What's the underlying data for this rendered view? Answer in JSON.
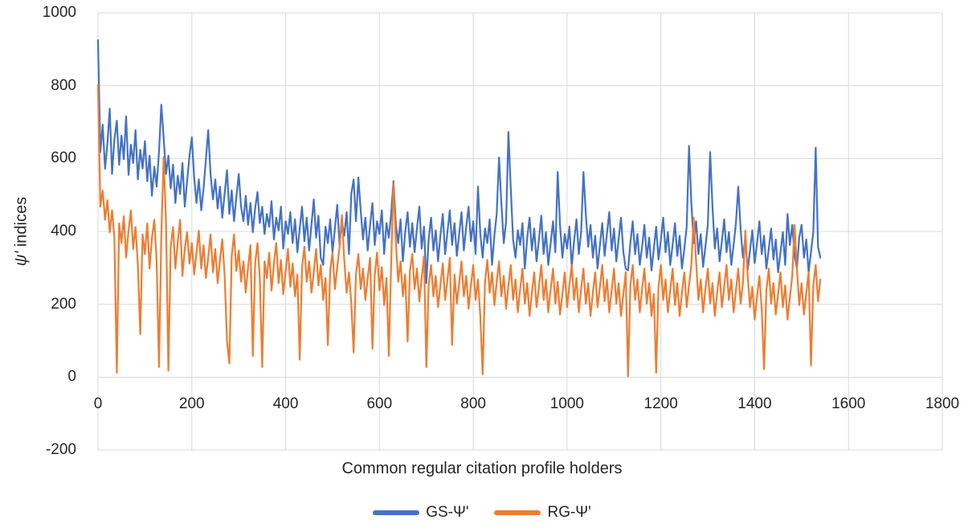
{
  "chart_data": {
    "type": "line",
    "title": "",
    "xlabel": "Common regular citation profile holders",
    "ylabel": "ψ' indices",
    "ylabel_symbol": "ψ'",
    "ylabel_rest": " indices",
    "xlim": [
      0,
      1800
    ],
    "ylim": [
      -200,
      1000
    ],
    "x_ticks": [
      0,
      200,
      400,
      600,
      800,
      1000,
      1200,
      1400,
      1600,
      1800
    ],
    "y_ticks": [
      -200,
      0,
      200,
      400,
      600,
      800,
      1000
    ],
    "grid": true,
    "gridline_color": "#d9d9d9",
    "legend_position": "bottom",
    "x_start": 0,
    "x_step": 5,
    "series": [
      {
        "name": "GS-Ψ'",
        "color": "#4472C4",
        "values": [
          925,
          618,
          693,
          572,
          641,
          737,
          558,
          652,
          704,
          583,
          663,
          598,
          716,
          555,
          638,
          588,
          678,
          543,
          624,
          573,
          648,
          538,
          608,
          498,
          578,
          523,
          618,
          748,
          658,
          558,
          608,
          518,
          583,
          478,
          553,
          503,
          588,
          468,
          538,
          608,
          658,
          548,
          478,
          543,
          458,
          518,
          598,
          678,
          558,
          488,
          543,
          463,
          523,
          438,
          503,
          568,
          448,
          513,
          428,
          493,
          558,
          468,
          428,
          498,
          418,
          478,
          398,
          463,
          508,
          423,
          468,
          393,
          448,
          413,
          483,
          378,
          438,
          403,
          468,
          353,
          428,
          393,
          453,
          368,
          433,
          343,
          408,
          468,
          373,
          438,
          348,
          418,
          488,
          383,
          443,
          328,
          308,
          413,
          368,
          433,
          343,
          408,
          473,
          363,
          428,
          388,
          453,
          338,
          503,
          543,
          428,
          548,
          458,
          378,
          438,
          348,
          418,
          478,
          363,
          428,
          393,
          458,
          338,
          423,
          383,
          448,
          538,
          418,
          368,
          433,
          318,
          398,
          453,
          358,
          423,
          343,
          408,
          468,
          353,
          413,
          258,
          378,
          438,
          348,
          403,
          318,
          388,
          448,
          338,
          398,
          458,
          363,
          423,
          333,
          393,
          453,
          348,
          413,
          468,
          373,
          428,
          338,
          523,
          393,
          328,
          408,
          368,
          433,
          308,
          388,
          448,
          603,
          478,
          368,
          428,
          673,
          518,
          378,
          328,
          403,
          363,
          423,
          298,
          383,
          438,
          348,
          408,
          318,
          378,
          443,
          338,
          398,
          308,
          368,
          428,
          343,
          563,
          418,
          328,
          393,
          353,
          413,
          303,
          373,
          433,
          338,
          398,
          563,
          448,
          358,
          418,
          328,
          388,
          298,
          363,
          423,
          333,
          393,
          453,
          348,
          408,
          318,
          378,
          438,
          343,
          298,
          293,
          368,
          428,
          338,
          393,
          308,
          358,
          418,
          328,
          383,
          293,
          353,
          413,
          323,
          378,
          438,
          343,
          398,
          308,
          363,
          423,
          333,
          388,
          298,
          353,
          413,
          635,
          478,
          368,
          428,
          338,
          393,
          303,
          358,
          418,
          618,
          468,
          353,
          408,
          318,
          373,
          433,
          343,
          398,
          308,
          363,
          423,
          523,
          408,
          328,
          383,
          293,
          348,
          403,
          313,
          368,
          428,
          338,
          388,
          298,
          353,
          408,
          323,
          378,
          288,
          343,
          398,
          308,
          448,
          363,
          418,
          333,
          298,
          383,
          418,
          328,
          378,
          288,
          343,
          398,
          630,
          358,
          328
        ]
      },
      {
        "name": "RG-Ψ'",
        "color": "#ED7D31",
        "values": [
          802,
          468,
          512,
          432,
          486,
          398,
          458,
          382,
          12,
          422,
          368,
          442,
          328,
          402,
          458,
          352,
          412,
          308,
          118,
          392,
          338,
          422,
          298,
          382,
          432,
          318,
          28,
          388,
          605,
          422,
          18,
          358,
          412,
          298,
          372,
          432,
          278,
          352,
          398,
          312,
          368,
          282,
          342,
          402,
          298,
          362,
          272,
          328,
          392,
          288,
          352,
          258,
          322,
          378,
          282,
          98,
          38,
          332,
          392,
          292,
          348,
          262,
          318,
          232,
          302,
          362,
          58,
          312,
          368,
          272,
          28,
          318,
          272,
          342,
          238,
          312,
          368,
          258,
          322,
          228,
          292,
          352,
          248,
          312,
          222,
          282,
          48,
          302,
          358,
          262,
          318,
          232,
          288,
          352,
          252,
          308,
          212,
          272,
          88,
          292,
          342,
          242,
          302,
          358,
          445,
          322,
          232,
          288,
          202,
          68,
          282,
          338,
          242,
          298,
          212,
          272,
          328,
          78,
          282,
          342,
          238,
          302,
          198,
          272,
          58,
          312,
          532,
          368,
          262,
          318,
          222,
          282,
          98,
          292,
          338,
          242,
          298,
          208,
          272,
          332,
          28,
          252,
          308,
          222,
          278,
          192,
          252,
          312,
          212,
          268,
          328,
          88,
          282,
          202,
          258,
          318,
          222,
          278,
          188,
          252,
          308,
          212,
          268,
          168,
          8,
          258,
          322,
          232,
          288,
          198,
          262,
          318,
          222,
          278,
          188,
          252,
          308,
          212,
          268,
          178,
          242,
          298,
          202,
          258,
          168,
          232,
          288,
          192,
          248,
          308,
          212,
          268,
          178,
          242,
          298,
          202,
          262,
          172,
          228,
          288,
          192,
          252,
          308,
          212,
          272,
          178,
          242,
          298,
          202,
          258,
          168,
          232,
          288,
          192,
          248,
          308,
          208,
          268,
          178,
          238,
          298,
          202,
          258,
          168,
          228,
          288,
          2,
          252,
          308,
          212,
          268,
          178,
          242,
          298,
          202,
          258,
          168,
          228,
          12,
          248,
          308,
          212,
          268,
          178,
          238,
          298,
          198,
          258,
          168,
          232,
          288,
          192,
          252,
          308,
          438,
          318,
          212,
          268,
          178,
          242,
          298,
          202,
          258,
          168,
          232,
          288,
          192,
          248,
          308,
          212,
          268,
          178,
          238,
          298,
          202,
          258,
          402,
          278,
          192,
          248,
          158,
          222,
          278,
          188,
          22,
          238,
          298,
          202,
          258,
          172,
          228,
          288,
          192,
          252,
          158,
          218,
          278,
          418,
          298,
          198,
          258,
          172,
          232,
          288,
          32,
          252,
          308,
          208,
          268
        ]
      }
    ]
  }
}
